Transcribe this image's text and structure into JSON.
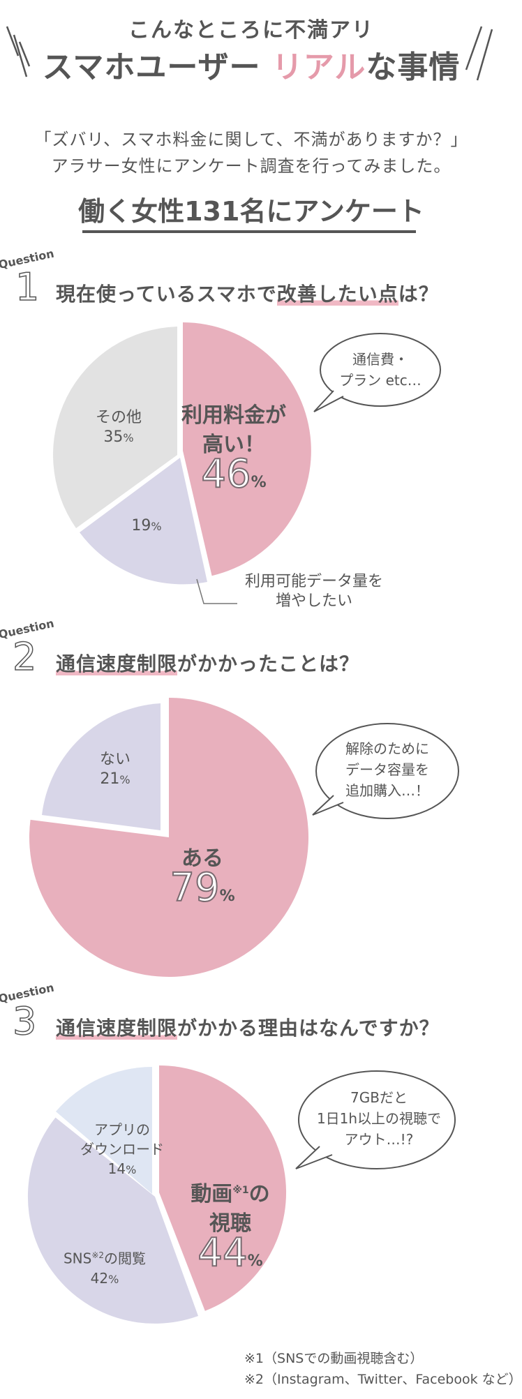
{
  "header": {
    "title_top": "こんなところに不満アリ",
    "title_main_part1": "スマホユーザー",
    "title_main_accent": "リアル",
    "title_main_part2": "な事情"
  },
  "intro": {
    "line1": "「ズバリ、スマホ料金に関して、不満がありますか？」",
    "line2": "アラサー女性にアンケート調査を行ってみました。"
  },
  "survey_title": "働く女性131名にアンケート",
  "question_word": "Question",
  "colors": {
    "pink": "#e8b0bd",
    "gray": "#e2e2e2",
    "lavender": "#d8d6e8",
    "lightblue": "#dfe6f3",
    "text": "#555555"
  },
  "q1": {
    "number": "1",
    "text_before": "現在使っているスマホで",
    "text_highlight": "改善したい点",
    "text_after": "は？",
    "bubble_line1": "通信費・",
    "bubble_line2": "プラン etc…",
    "slice_main_line1": "利用料金が",
    "slice_main_line2": "高い！",
    "slice_main_value": "46",
    "slice_other_label": "その他",
    "slice_other_value": "35",
    "slice_data_value": "19",
    "callout_line1": "利用可能データ量を",
    "callout_line2": "増やしたい",
    "pct": "%"
  },
  "q2": {
    "number": "2",
    "text_highlight": "通信速度制限",
    "text_after": "がかかったことは？",
    "bubble_line1": "解除のために",
    "bubble_line2": "データ容量を",
    "bubble_line3": "追加購入…！",
    "slice_yes_label": "ある",
    "slice_yes_value": "79",
    "slice_no_label": "ない",
    "slice_no_value": "21",
    "pct": "%"
  },
  "q3": {
    "number": "3",
    "text_highlight": "通信速度制限",
    "text_after": "がかかる理由はなんですか？",
    "bubble_line1": "7GBだと",
    "bubble_line2": "1日1h以上の視聴で",
    "bubble_line3": "アウト…!?",
    "slice_video_line1": "動画",
    "slice_video_sup": "※1",
    "slice_video_line1b": "の",
    "slice_video_line2": "視聴",
    "slice_video_value": "44",
    "slice_sns_label": "SNS",
    "slice_sns_sup": "※2",
    "slice_sns_label2": "の閲覧",
    "slice_sns_value": "42",
    "slice_app_line1": "アプリの",
    "slice_app_line2": "ダウンロード",
    "slice_app_value": "14",
    "pct": "%",
    "note1": "※1（SNSでの動画視聴含む）",
    "note2": "※2（Instagram、Twitter、Facebook など）"
  },
  "chart_data": [
    {
      "type": "pie",
      "categories": [
        "利用料金が高い！",
        "利用可能データ量を増やしたい",
        "その他"
      ],
      "values": [
        46,
        19,
        35
      ]
    },
    {
      "type": "pie",
      "categories": [
        "ある",
        "ない"
      ],
      "values": [
        79,
        21
      ]
    },
    {
      "type": "pie",
      "categories": [
        "動画の視聴",
        "SNSの閲覧",
        "アプリのダウンロード"
      ],
      "values": [
        44,
        42,
        14
      ]
    }
  ]
}
